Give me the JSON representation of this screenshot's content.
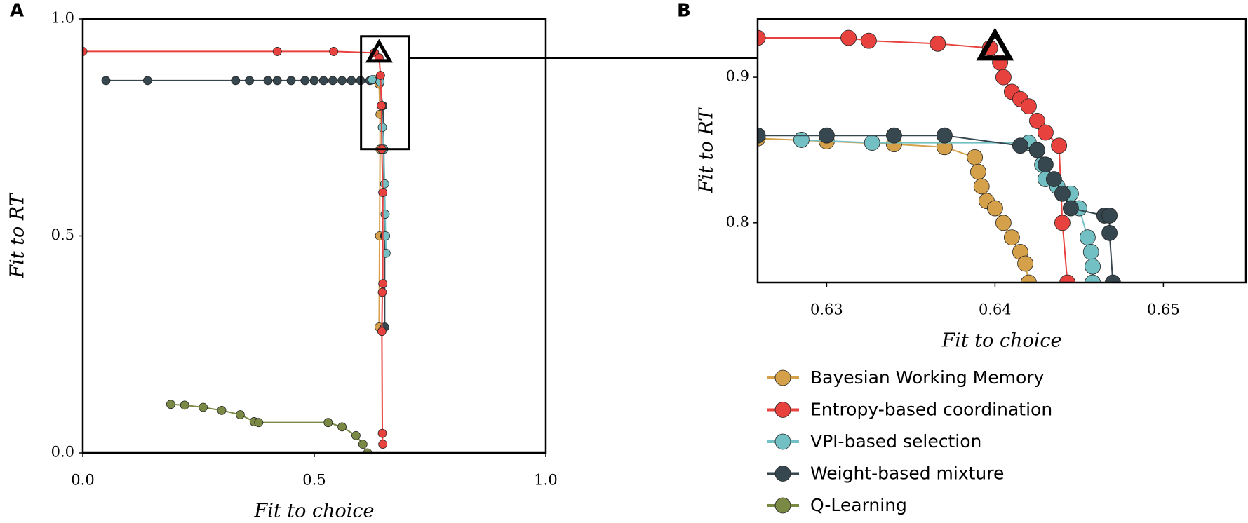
{
  "chart_data": [
    {
      "type": "line",
      "panel": "A",
      "xlabel": "Fit to choice",
      "ylabel": "Fit to RT",
      "xlim": [
        0,
        1
      ],
      "ylim": [
        0,
        1
      ],
      "xticks": [
        {
          "value": 0,
          "label": "0.0"
        },
        {
          "value": 0.5,
          "label": "0.5"
        },
        {
          "value": 1,
          "label": "1.0"
        }
      ],
      "yticks": [
        {
          "value": 0,
          "label": "0.0"
        },
        {
          "value": 0.5,
          "label": "0.5"
        },
        {
          "value": 1,
          "label": "1.0"
        }
      ],
      "highlight": [
        0.64,
        0.92
      ],
      "zoom_box": {
        "xlim": [
          0.601,
          0.704
        ],
        "ylim": [
          0.7,
          0.96
        ]
      },
      "series": [
        {
          "color": "#d4a04a",
          "x": [
            0.63,
            0.64,
            0.642,
            0.642,
            0.641,
            0.64
          ],
          "y": [
            0.86,
            0.85,
            0.78,
            0.7,
            0.5,
            0.29
          ]
        },
        {
          "color": "#37474f",
          "x": [
            0.05,
            0.14,
            0.33,
            0.36,
            0.4,
            0.42,
            0.45,
            0.48,
            0.5,
            0.52,
            0.54,
            0.56,
            0.58,
            0.6,
            0.62,
            0.64,
            0.648,
            0.65,
            0.652,
            0.652
          ],
          "y": [
            0.858,
            0.858,
            0.858,
            0.858,
            0.858,
            0.858,
            0.858,
            0.858,
            0.858,
            0.858,
            0.858,
            0.858,
            0.858,
            0.858,
            0.858,
            0.858,
            0.8,
            0.7,
            0.5,
            0.29
          ]
        },
        {
          "color": "#72c0c4",
          "x": [
            0.625,
            0.642,
            0.645,
            0.647,
            0.65,
            0.652,
            0.653,
            0.654,
            0.655
          ],
          "y": [
            0.86,
            0.855,
            0.8,
            0.75,
            0.7,
            0.62,
            0.55,
            0.5,
            0.46
          ]
        },
        {
          "color": "#e8423f",
          "x": [
            0,
            0.42,
            0.542,
            0.63,
            0.64,
            0.643,
            0.645,
            0.646,
            0.648,
            0.648,
            0.647,
            0.646,
            0.647,
            0.648
          ],
          "y": [
            0.925,
            0.925,
            0.925,
            0.922,
            0.91,
            0.87,
            0.8,
            0.7,
            0.6,
            0.39,
            0.37,
            0.28,
            0.045,
            0.02
          ]
        },
        {
          "color": "#7a8a45",
          "x": [
            0.19,
            0.22,
            0.26,
            0.3,
            0.34,
            0.37,
            0.38,
            0.53,
            0.56,
            0.59,
            0.605,
            0.615
          ],
          "y": [
            0.112,
            0.11,
            0.105,
            0.098,
            0.088,
            0.072,
            0.07,
            0.07,
            0.06,
            0.04,
            0.02,
            0.0
          ]
        }
      ]
    },
    {
      "type": "line",
      "panel": "B",
      "xlabel": "Fit to choice",
      "ylabel": "Fit to RT",
      "xlim": [
        0.6259,
        0.6549
      ],
      "ylim": [
        0.759,
        0.94
      ],
      "xticks": [
        0.63,
        0.64,
        0.65
      ],
      "yticks": [
        0.8,
        0.9
      ],
      "highlight": [
        0.64,
        0.92
      ],
      "series": [
        {
          "name": "Bayesian Working Memory",
          "color": "#d4a04a",
          "x": [
            0.6259,
            0.63,
            0.634,
            0.637,
            0.6388,
            0.639,
            0.6392,
            0.6395,
            0.64,
            0.6405,
            0.641,
            0.6415,
            0.6418,
            0.642
          ],
          "y": [
            0.858,
            0.856,
            0.854,
            0.852,
            0.845,
            0.835,
            0.825,
            0.815,
            0.81,
            0.8,
            0.79,
            0.78,
            0.772,
            0.759
          ]
        },
        {
          "name": "Entropy-based coordination",
          "color": "#e8423f",
          "x": [
            0.6259,
            0.6313,
            0.6325,
            0.6366,
            0.6397,
            0.6403,
            0.6405,
            0.641,
            0.6415,
            0.642,
            0.6425,
            0.643,
            0.6438,
            0.644,
            0.6443
          ],
          "y": [
            0.927,
            0.927,
            0.925,
            0.923,
            0.92,
            0.91,
            0.9,
            0.89,
            0.885,
            0.88,
            0.87,
            0.862,
            0.853,
            0.8,
            0.759
          ]
        },
        {
          "name": "VPI-based selection",
          "color": "#72c0c4",
          "x": [
            0.6285,
            0.6327,
            0.642,
            0.6425,
            0.6428,
            0.643,
            0.6437,
            0.6445,
            0.645,
            0.6455,
            0.6457,
            0.6458,
            0.6458
          ],
          "y": [
            0.857,
            0.855,
            0.855,
            0.85,
            0.84,
            0.83,
            0.825,
            0.82,
            0.81,
            0.79,
            0.78,
            0.77,
            0.759
          ]
        },
        {
          "name": "Weight-based mixture",
          "color": "#37474f",
          "x": [
            0.6259,
            0.63,
            0.634,
            0.637,
            0.6415,
            0.6425,
            0.643,
            0.6435,
            0.644,
            0.6445,
            0.6465,
            0.6468,
            0.6468,
            0.647
          ],
          "y": [
            0.86,
            0.86,
            0.86,
            0.86,
            0.853,
            0.85,
            0.84,
            0.83,
            0.82,
            0.81,
            0.805,
            0.805,
            0.793,
            0.759
          ]
        },
        {
          "name": "Q-Learning",
          "color": "#7a8a45",
          "x": [],
          "y": []
        }
      ]
    }
  ]
}
